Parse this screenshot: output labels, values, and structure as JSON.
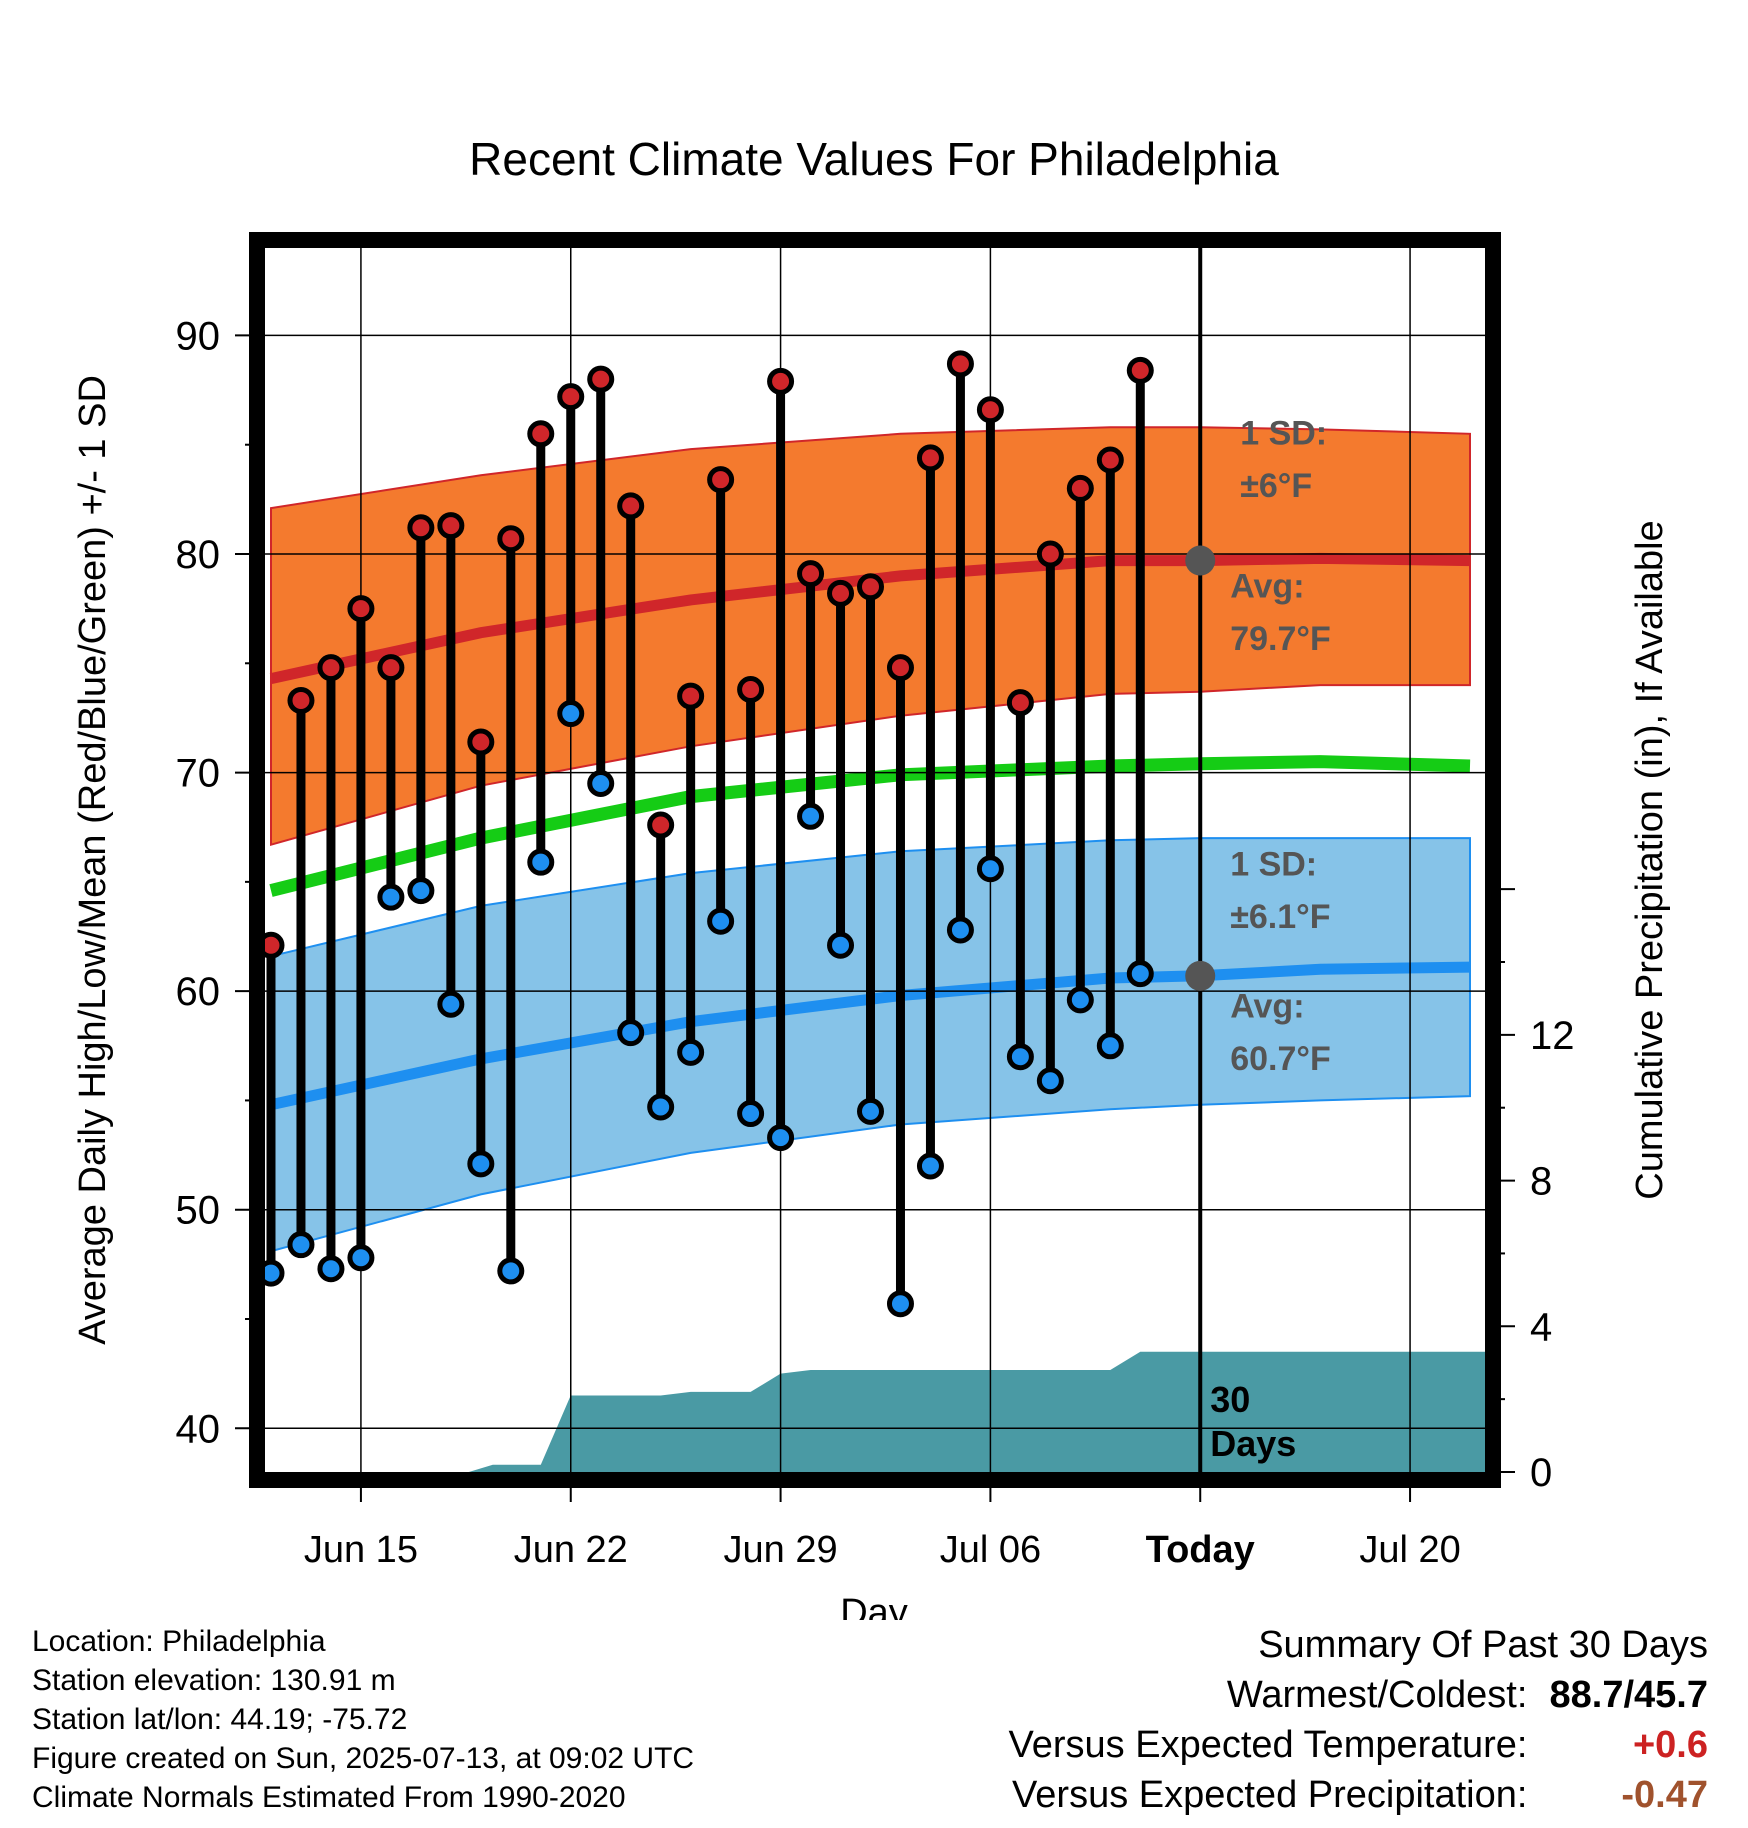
{
  "chart_data": {
    "type": "line",
    "title": "Recent Climate Values For Philadelphia",
    "xlabel": "Day",
    "ylabel": "Average Daily High/Low/Mean (Red/Blue/Green) +/- 1 SD",
    "ylabel_right": "Cumulative Precipitation (in), If Available",
    "ylim": [
      38,
      94
    ],
    "ylim_right": [
      0,
      33.6
    ],
    "x_ticks": [
      {
        "day": 4,
        "label": "Jun 15"
      },
      {
        "day": 11,
        "label": "Jun 22"
      },
      {
        "day": 18,
        "label": "Jun 29"
      },
      {
        "day": 25,
        "label": "Jul 06"
      },
      {
        "day": 32,
        "label": "Today"
      },
      {
        "day": 39,
        "label": "Jul 20"
      }
    ],
    "xlim": [
      0.8,
      41.5
    ],
    "y_ticks": [
      40,
      50,
      60,
      70,
      80,
      90
    ],
    "y_ticks_right": [
      0,
      4,
      8,
      12
    ],
    "grid": true,
    "today_day": 32,
    "today_label": "30 Days",
    "high_band": {
      "days": [
        1,
        8,
        15,
        22,
        29,
        32,
        36,
        41
      ],
      "avg": [
        74.3,
        76.4,
        77.9,
        79.0,
        79.7,
        79.7,
        79.8,
        79.7
      ],
      "upper": [
        82.1,
        83.6,
        84.8,
        85.5,
        85.8,
        85.8,
        85.7,
        85.5
      ],
      "lower": [
        66.7,
        69.4,
        71.2,
        72.6,
        73.6,
        73.7,
        74.0,
        74.0
      ],
      "sd_label": "1 SD:",
      "sd_value": "±6°F",
      "avg_label": "Avg:",
      "avg_value": "79.7°F"
    },
    "mean_line": {
      "days": [
        1,
        8,
        15,
        22,
        29,
        32,
        36,
        41
      ],
      "values": [
        64.6,
        67.0,
        68.9,
        69.9,
        70.3,
        70.4,
        70.5,
        70.3
      ]
    },
    "low_band": {
      "days": [
        1,
        8,
        15,
        22,
        29,
        32,
        36,
        41
      ],
      "avg": [
        54.8,
        56.9,
        58.6,
        59.8,
        60.6,
        60.7,
        61.0,
        61.1
      ],
      "upper": [
        61.6,
        63.9,
        65.4,
        66.4,
        66.9,
        67.0,
        67.0,
        67.0
      ],
      "lower": [
        48.1,
        50.7,
        52.6,
        53.9,
        54.6,
        54.8,
        55.0,
        55.2
      ],
      "sd_label": "1 SD:",
      "sd_value": "±6.1°F",
      "avg_label": "Avg:",
      "avg_value": "60.7°F"
    },
    "series": [
      {
        "name": "High",
        "color": "#d0262a",
        "values": [
          62.1,
          73.3,
          74.8,
          77.5,
          74.8,
          81.2,
          81.3,
          71.4,
          80.7,
          85.5,
          87.2,
          88.0,
          82.2,
          67.6,
          73.5,
          83.4,
          73.8,
          87.9,
          79.1,
          78.2,
          78.5,
          74.8,
          84.4,
          88.7,
          86.6,
          73.2,
          80.0,
          83.0,
          84.3,
          88.4
        ]
      },
      {
        "name": "Low",
        "color": "#1e8ff0",
        "values": [
          47.1,
          48.4,
          47.3,
          47.8,
          64.3,
          64.6,
          59.4,
          52.1,
          47.2,
          65.9,
          72.7,
          69.5,
          58.1,
          54.7,
          57.2,
          63.2,
          54.4,
          53.3,
          68.0,
          62.1,
          54.5,
          45.7,
          52.0,
          62.8,
          65.6,
          57.0,
          55.9,
          59.6,
          57.5,
          60.8
        ]
      }
    ],
    "days": [
      1,
      2,
      3,
      4,
      5,
      6,
      7,
      8,
      9,
      10,
      11,
      12,
      13,
      14,
      15,
      16,
      17,
      18,
      19,
      20,
      21,
      22,
      23,
      24,
      25,
      26,
      27,
      28,
      29,
      30
    ],
    "precip": {
      "color": "#4a9aa4",
      "days": [
        1,
        7.6,
        8.4,
        9.4,
        10.0,
        11.0,
        13.0,
        14.0,
        15.0,
        17.0,
        18.0,
        19.0,
        20.0,
        22.0,
        26.0,
        29.0,
        30.0,
        31.0,
        41.5
      ],
      "values": [
        0,
        0,
        0.2,
        0.2,
        0.2,
        2.1,
        2.1,
        2.1,
        2.2,
        2.2,
        2.7,
        2.8,
        2.8,
        2.8,
        2.8,
        2.8,
        3.3,
        3.3,
        3.3
      ]
    }
  },
  "info": {
    "location": "Location: Philadelphia",
    "elevation": "Station elevation: 130.91 m",
    "latlon": "Station lat/lon: 44.19; -75.72",
    "created": "Figure created on Sun, 2025-07-13, at 09:02 UTC",
    "normals": "Climate Normals Estimated From 1990-2020"
  },
  "summary": {
    "title": "Summary Of Past 30 Days",
    "warm_cold_label": "Warmest/Coldest:",
    "warm_cold_value": "88.7/45.7",
    "temp_label": "Versus Expected Temperature:",
    "temp_value": "+0.6",
    "precip_label": "Versus Expected Precipitation:",
    "precip_value": "-0.47"
  }
}
